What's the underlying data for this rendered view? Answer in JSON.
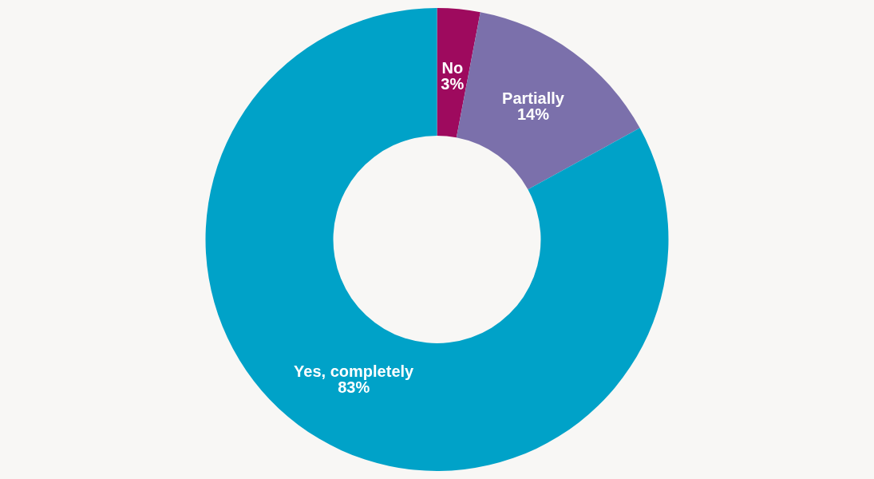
{
  "chart_data": {
    "type": "donut",
    "categories": [
      "No",
      "Partially",
      "Yes, completely"
    ],
    "values": [
      3,
      14,
      83
    ],
    "colors": [
      "#9e0a5e",
      "#7b70ab",
      "#00a2c8"
    ],
    "value_labels": [
      "3%",
      "14%",
      "83%"
    ]
  }
}
